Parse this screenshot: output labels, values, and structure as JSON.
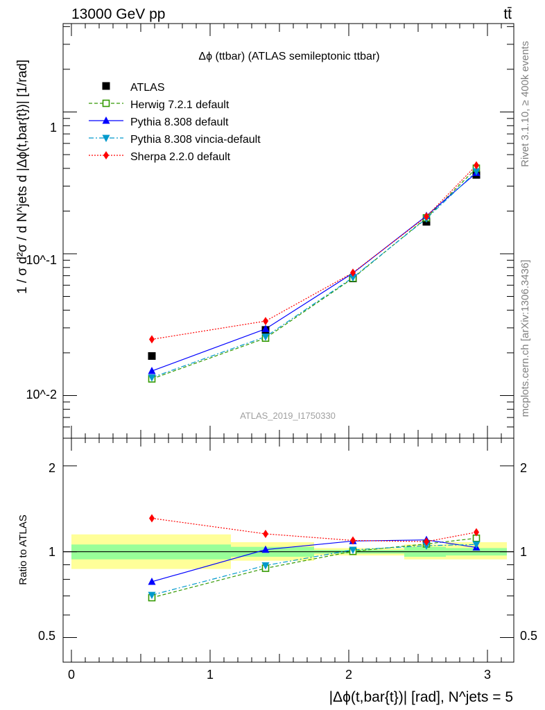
{
  "header": {
    "energy_label": "13000 GeV pp",
    "process_label": "tt̄"
  },
  "side_labels": {
    "rivet": "Rivet 3.1.10, ≥ 400k events",
    "site": "mcplots.cern.ch [arXiv:1306.3436]"
  },
  "colors": {
    "atlas": "#000000",
    "herwig": "#339900",
    "pythia": "#0000ff",
    "vincia": "#0099cc",
    "sherpa": "#ff0000",
    "band_green": "#99ff99",
    "band_yellow": "#ffff99"
  },
  "chart_data": [
    {
      "type": "line",
      "panel": "main",
      "title": "Δϕ (ttbar) (ATLAS semileptonic ttbar)",
      "ylabel": "1 / σ d²σ / d N^jets d |Δϕ(t,bar{t})| [1/rad]",
      "yscale": "log",
      "ylim": [
        0.005,
        4.2
      ],
      "xlim": [
        -0.08,
        3.2
      ],
      "ytick_labels": [
        "10^-2",
        "10^-1",
        "1"
      ],
      "watermark": "ATLAS_2019_I1750330",
      "legend_position": "top-left",
      "x": [
        0.58,
        1.4,
        2.03,
        2.56,
        2.92
      ],
      "series": [
        {
          "name": "ATLAS",
          "key": "atlas",
          "marker": "square",
          "values": [
            0.019,
            0.029,
            0.067,
            0.168,
            0.36
          ]
        },
        {
          "name": "Herwig 7.2.1 default",
          "key": "herwig",
          "marker": "open-square",
          "values": [
            0.0131,
            0.0254,
            0.0672,
            0.179,
            0.401
          ]
        },
        {
          "name": "Pythia 8.308 default",
          "key": "pythia",
          "marker": "triangle-up",
          "values": [
            0.0149,
            0.0295,
            0.073,
            0.185,
            0.372
          ]
        },
        {
          "name": "Pythia 8.308 vincia-default",
          "key": "vincia",
          "marker": "triangle-down",
          "values": [
            0.0134,
            0.026,
            0.068,
            0.177,
            0.381
          ]
        },
        {
          "name": "Sherpa 2.2.0 default",
          "key": "sherpa",
          "marker": "diamond",
          "values": [
            0.0249,
            0.0335,
            0.0735,
            0.183,
            0.42
          ]
        }
      ]
    },
    {
      "type": "line",
      "panel": "ratio",
      "ylabel": "Ratio to ATLAS",
      "yscale": "log",
      "ylim": [
        0.41,
        2.5
      ],
      "xlim": [
        -0.08,
        3.2
      ],
      "xlabel": "|Δϕ(t,bar{t})| [rad], N^jets = 5",
      "xtick_labels": [
        "0",
        "1",
        "2",
        "3"
      ],
      "ytick_labels": [
        "0.5",
        "1",
        "2"
      ],
      "reference": 1,
      "bins": [
        {
          "lo": 0.0,
          "hi": 1.15,
          "green": [
            0.94,
            1.06
          ],
          "yellow": [
            0.87,
            1.15
          ]
        },
        {
          "lo": 1.15,
          "hi": 1.75,
          "green": [
            0.96,
            1.04
          ],
          "yellow": [
            0.93,
            1.08
          ]
        },
        {
          "lo": 1.75,
          "hi": 2.4,
          "green": [
            0.985,
            1.015
          ],
          "yellow": [
            0.97,
            1.03
          ]
        },
        {
          "lo": 2.4,
          "hi": 2.7,
          "green": [
            0.96,
            1.04
          ],
          "yellow": [
            0.94,
            1.06
          ]
        },
        {
          "lo": 2.7,
          "hi": 3.14,
          "green": [
            0.97,
            1.03
          ],
          "yellow": [
            0.94,
            1.08
          ]
        }
      ],
      "x": [
        0.58,
        1.4,
        2.03,
        2.56,
        2.92
      ],
      "series": [
        {
          "name": "Herwig 7.2.1 default",
          "key": "herwig",
          "marker": "open-square",
          "values": [
            0.69,
            0.875,
            1.003,
            1.065,
            1.115
          ]
        },
        {
          "name": "Pythia 8.308 default",
          "key": "pythia",
          "marker": "triangle-up",
          "values": [
            0.785,
            1.017,
            1.09,
            1.1,
            1.035
          ]
        },
        {
          "name": "Pythia 8.308 vincia-default",
          "key": "vincia",
          "marker": "triangle-down",
          "values": [
            0.705,
            0.895,
            1.015,
            1.05,
            1.06
          ]
        },
        {
          "name": "Sherpa 2.2.0 default",
          "key": "sherpa",
          "marker": "diamond",
          "values": [
            1.31,
            1.155,
            1.095,
            1.085,
            1.17
          ]
        }
      ]
    }
  ]
}
